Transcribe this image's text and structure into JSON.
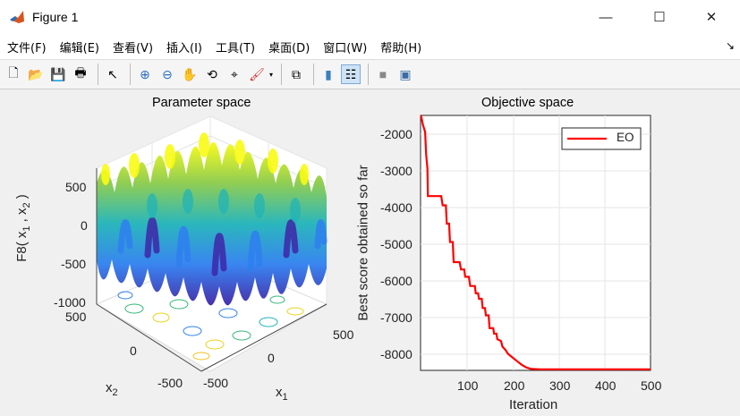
{
  "window": {
    "title": "Figure 1",
    "controls": {
      "minimize": "—",
      "maximize": "☐",
      "close": "✕"
    }
  },
  "menu": {
    "items": [
      {
        "label": "文件(F)"
      },
      {
        "label": "编辑(E)"
      },
      {
        "label": "查看(V)"
      },
      {
        "label": "插入(I)"
      },
      {
        "label": "工具(T)"
      },
      {
        "label": "桌面(D)"
      },
      {
        "label": "窗口(W)"
      },
      {
        "label": "帮助(H)"
      }
    ],
    "dock_icon": "↘"
  },
  "toolbar": {
    "buttons": [
      {
        "name": "new-figure-icon",
        "glyph": "🗋"
      },
      {
        "name": "open-file-icon",
        "glyph": "📂"
      },
      {
        "name": "save-icon",
        "glyph": "💾"
      },
      {
        "name": "print-icon",
        "glyph": "🖶"
      },
      {
        "name": "pointer-icon",
        "glyph": "↖"
      },
      {
        "name": "zoom-in-icon",
        "glyph": "⊕"
      },
      {
        "name": "zoom-out-icon",
        "glyph": "⊖"
      },
      {
        "name": "pan-icon",
        "glyph": "✋"
      },
      {
        "name": "rotate-3d-icon",
        "glyph": "⟲"
      },
      {
        "name": "data-cursor-icon",
        "glyph": "⌖"
      },
      {
        "name": "brush-icon",
        "glyph": "🖌"
      },
      {
        "name": "link-plot-icon",
        "glyph": "⧉"
      },
      {
        "name": "colorbar-icon",
        "glyph": "▮"
      },
      {
        "name": "legend-icon",
        "glyph": "☷"
      },
      {
        "name": "hide-plot-tools-icon",
        "glyph": "■"
      },
      {
        "name": "show-plot-tools-icon",
        "glyph": "▣"
      }
    ]
  },
  "chart_data": [
    {
      "type": "surface",
      "title": "Parameter space",
      "xlabel": "x_1",
      "ylabel": "x_2",
      "zlabel": "F8( x_1 , x_2 )",
      "x_ticks": [
        "-500",
        "0",
        "500"
      ],
      "y_ticks": [
        "-500",
        "0",
        "500"
      ],
      "z_ticks": [
        "-1000",
        "-500",
        "0",
        "500"
      ],
      "xlim": [
        -500,
        500
      ],
      "ylim": [
        -500,
        500
      ],
      "zlim": [
        -1000,
        800
      ],
      "colormap": "parula",
      "contour_on_base": true
    },
    {
      "type": "line",
      "title": "Objective space",
      "xlabel": "Iteration",
      "ylabel": "Best score obtained so far",
      "x_ticks": [
        "100",
        "200",
        "300",
        "400",
        "500"
      ],
      "y_ticks": [
        "-2000",
        "-3000",
        "-4000",
        "-5000",
        "-6000",
        "-7000",
        "-8000"
      ],
      "xlim": [
        0,
        500
      ],
      "ylim": [
        -8500,
        -1550
      ],
      "grid": true,
      "legend": {
        "position": "northeast",
        "entries": [
          "EO"
        ]
      },
      "series": [
        {
          "name": "EO",
          "color": "#ff0000",
          "x": [
            1,
            5,
            10,
            12,
            15,
            16,
            45,
            48,
            55,
            57,
            62,
            64,
            70,
            72,
            85,
            88,
            95,
            97,
            105,
            108,
            118,
            120,
            125,
            127,
            133,
            135,
            140,
            142,
            148,
            150,
            158,
            160,
            165,
            167,
            175,
            178,
            185,
            190,
            200,
            210,
            220,
            230,
            240,
            260,
            300,
            400,
            500
          ],
          "y": [
            -1550,
            -1800,
            -2000,
            -2600,
            -3000,
            -3750,
            -3750,
            -4000,
            -4000,
            -4500,
            -4500,
            -5000,
            -5000,
            -5550,
            -5550,
            -5750,
            -5750,
            -5950,
            -5950,
            -6200,
            -6200,
            -6400,
            -6400,
            -6550,
            -6550,
            -6800,
            -6800,
            -7000,
            -7000,
            -7350,
            -7350,
            -7500,
            -7500,
            -7650,
            -7700,
            -7850,
            -7950,
            -8050,
            -8150,
            -8250,
            -8350,
            -8420,
            -8460,
            -8470,
            -8470,
            -8470,
            -8470
          ]
        }
      ]
    }
  ],
  "axes_text": {
    "left_title": "Parameter space",
    "right_title": "Objective space",
    "z_ticks": [
      "500",
      "0",
      "-500",
      "-1000"
    ],
    "y_ticks": [
      "500",
      "0",
      "-500"
    ],
    "x_ticks": [
      "-500",
      "0",
      "500"
    ],
    "xlabel": "x",
    "xlabel_sub": "1",
    "ylabel": "x",
    "ylabel_sub": "2",
    "zlabel": "F8( x",
    "zlabel_sub1": "1",
    "zlabel_mid": " , x",
    "zlabel_sub2": "2",
    "zlabel_end": " )",
    "r_y_ticks": [
      "-2000",
      "-3000",
      "-4000",
      "-5000",
      "-6000",
      "-7000",
      "-8000"
    ],
    "r_x_ticks": [
      "100",
      "200",
      "300",
      "400",
      "500"
    ],
    "r_xlabel": "Iteration",
    "r_ylabel": "Best score obtained so far",
    "legend_label": "EO"
  }
}
